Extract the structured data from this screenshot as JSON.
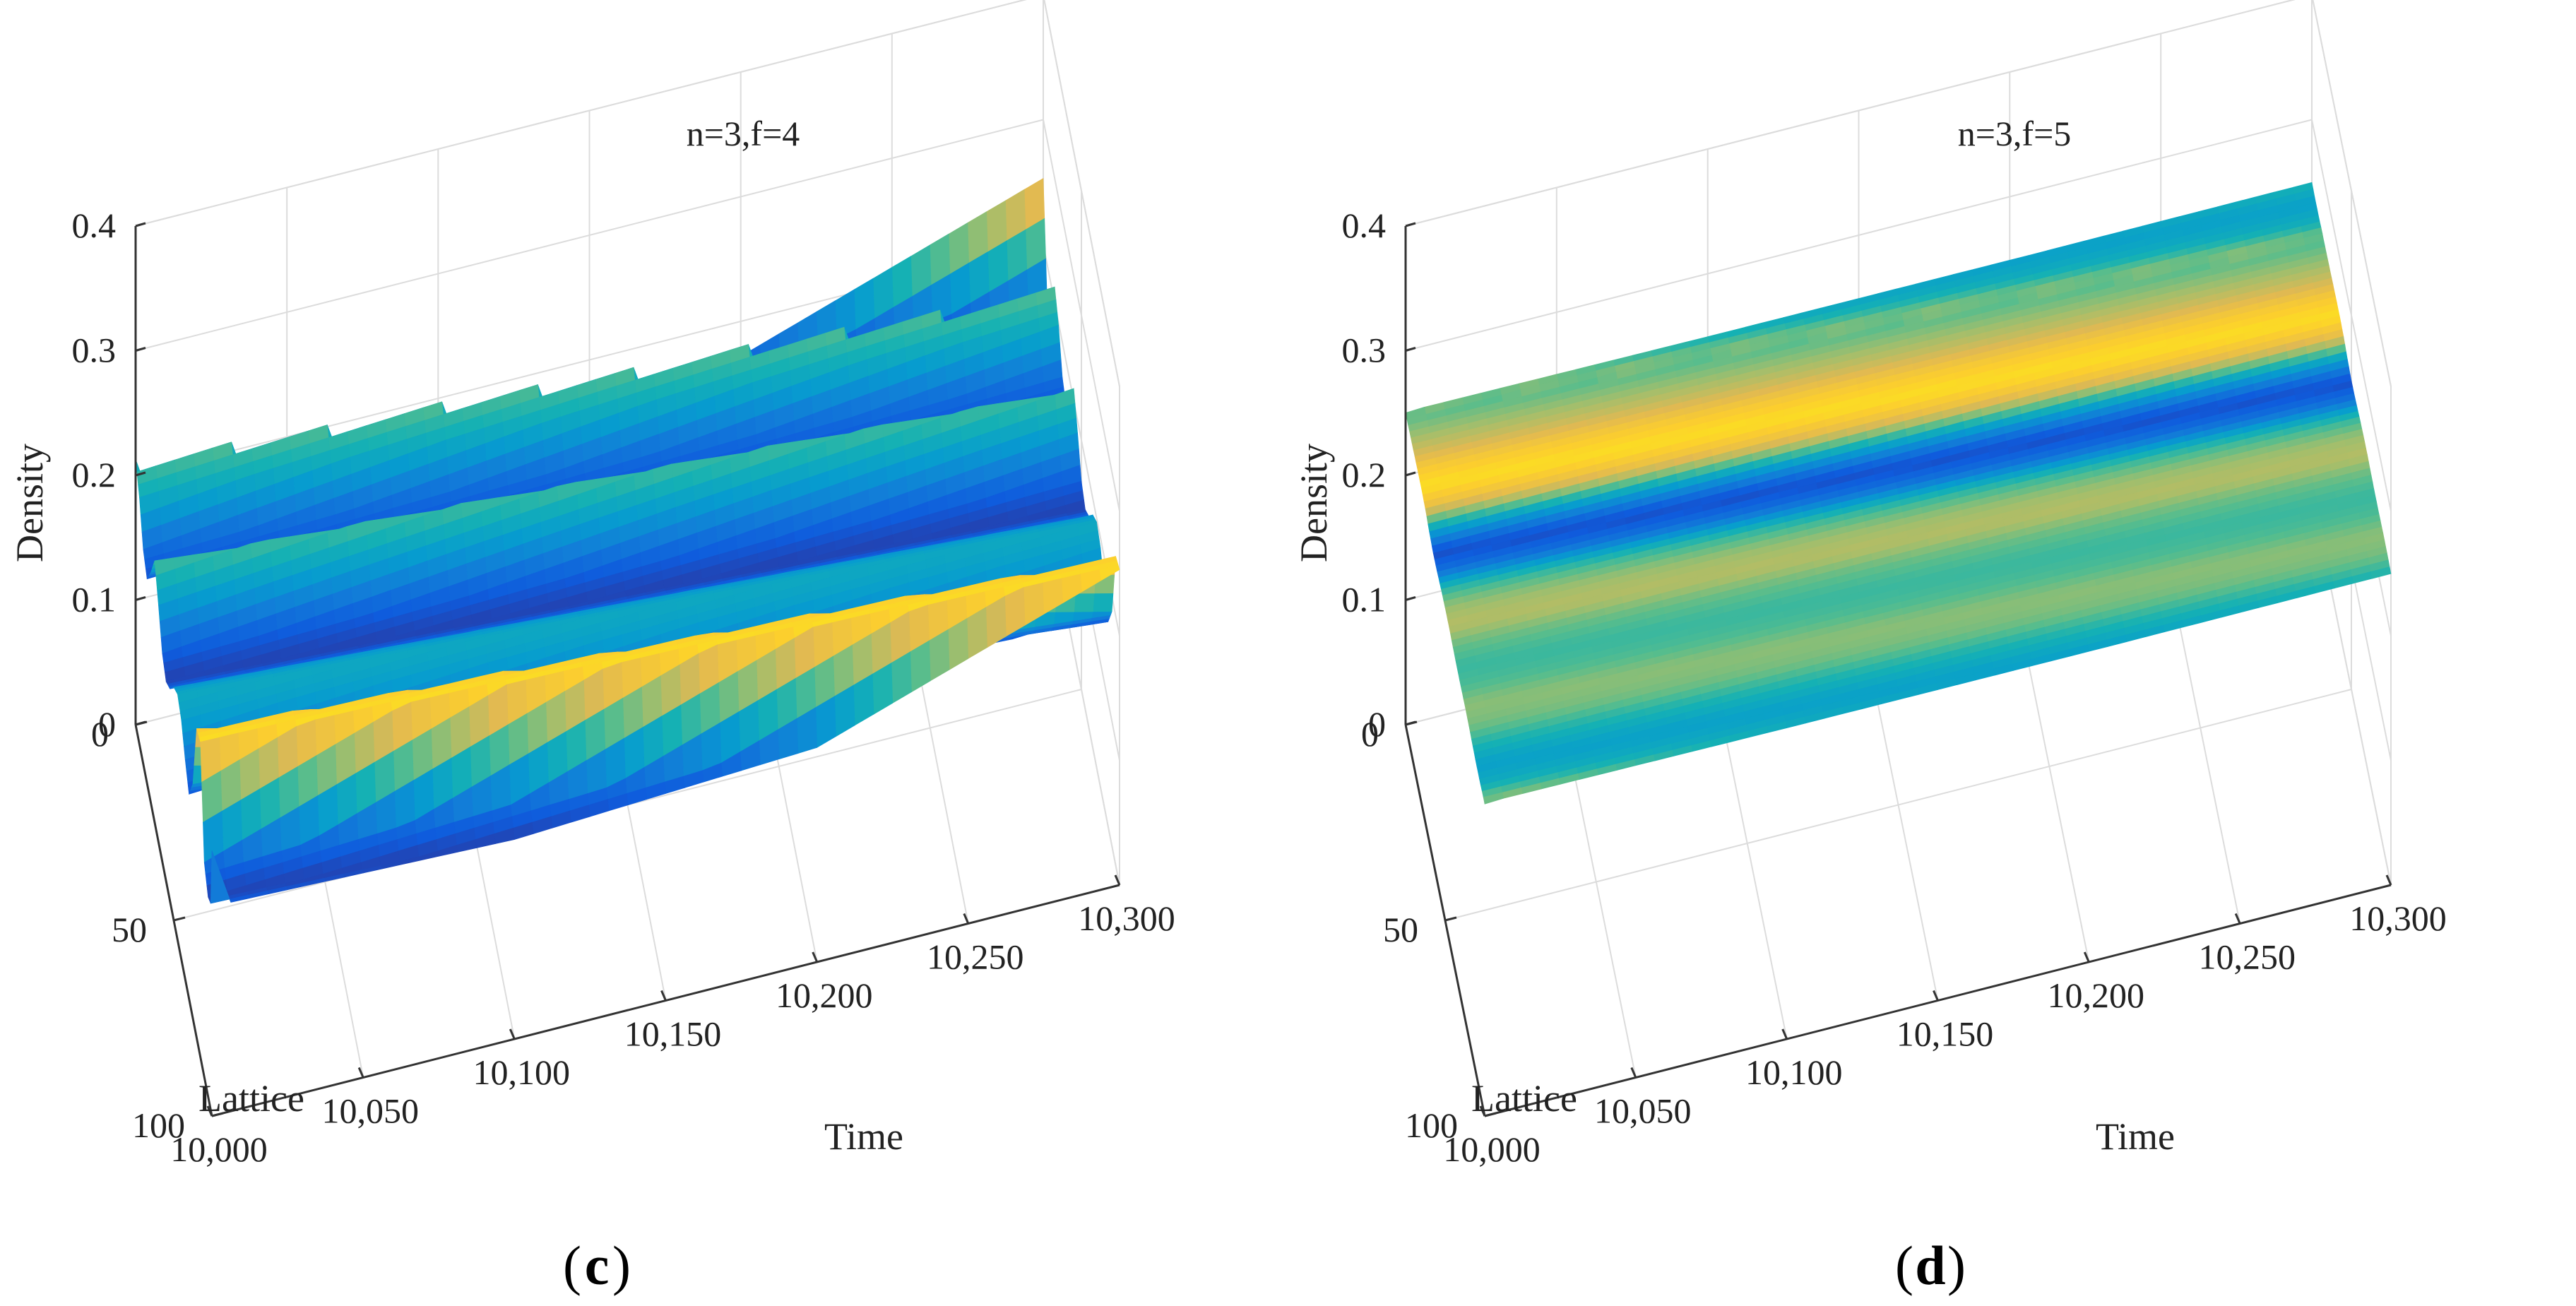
{
  "chart_data": [
    {
      "type": "surface",
      "panel_label": "c",
      "annotation": "n=3,f=4",
      "xlabel": "Time",
      "ylabel": "Lattice",
      "zlabel": "Density",
      "x_ticks": [
        "10,000",
        "10,050",
        "10,100",
        "10,150",
        "10,200",
        "10,250",
        "10,300"
      ],
      "x_tick_values": [
        10000,
        10050,
        10100,
        10150,
        10200,
        10250,
        10300
      ],
      "y_ticks": [
        "0",
        "50",
        "100"
      ],
      "y_tick_values": [
        0,
        50,
        100
      ],
      "z_ticks": [
        "0",
        "0.1",
        "0.2",
        "0.3",
        "0.4"
      ],
      "z_tick_values": [
        0,
        0.1,
        0.2,
        0.3,
        0.4
      ],
      "xlim": [
        10000,
        10300
      ],
      "ylim": [
        0,
        100
      ],
      "zlim": [
        0,
        0.4
      ],
      "density_range": [
        0.155,
        0.26
      ],
      "colormap": "parula",
      "grid": true,
      "surface": {
        "lattice": [
          0,
          5,
          10,
          15,
          20,
          25,
          30,
          35,
          40,
          45,
          50,
          55,
          60,
          65,
          70,
          75,
          80,
          85,
          90,
          95,
          100
        ],
        "density_at_time_10000": [
          0.213,
          0.198,
          0.172,
          0.164,
          0.185,
          0.21,
          0.19,
          0.167,
          0.16,
          0.17,
          0.187,
          0.197,
          0.192,
          0.176,
          0.164,
          0.188,
          0.248,
          0.253,
          0.172,
          0.16,
          0.168
        ],
        "wave_drift_sites_per_time": 0.05
      }
    },
    {
      "type": "surface",
      "panel_label": "d",
      "annotation": "n=3,f=5",
      "xlabel": "Time",
      "ylabel": "Lattice",
      "zlabel": "Density",
      "x_ticks": [
        "10,000",
        "10,050",
        "10,100",
        "10,150",
        "10,200",
        "10,250",
        "10,300"
      ],
      "x_tick_values": [
        10000,
        10050,
        10100,
        10150,
        10200,
        10250,
        10300
      ],
      "y_ticks": [
        "0",
        "50",
        "100"
      ],
      "y_tick_values": [
        0,
        50,
        100
      ],
      "z_ticks": [
        "0",
        "0.1",
        "0.2",
        "0.3",
        "0.4"
      ],
      "z_tick_values": [
        0,
        0.1,
        0.2,
        0.3,
        0.4
      ],
      "xlim": [
        10000,
        10300
      ],
      "ylim": [
        0,
        100
      ],
      "zlim": [
        0,
        0.4
      ],
      "density_range": [
        0.247,
        0.253
      ],
      "colormap": "parula",
      "grid": true,
      "surface": {
        "lattice": [
          0,
          5,
          10,
          15,
          20,
          25,
          30,
          35,
          40,
          45,
          50,
          55,
          60,
          65,
          70,
          75,
          80,
          85,
          90,
          95,
          100
        ],
        "density_at_time_10000": [
          0.2502,
          0.2508,
          0.2514,
          0.2522,
          0.2526,
          0.2518,
          0.249,
          0.2474,
          0.2481,
          0.2499,
          0.2509,
          0.2512,
          0.2504,
          0.25,
          0.2502,
          0.2508,
          0.2506,
          0.2497,
          0.2491,
          0.2495,
          0.251
        ],
        "wave_drift_sites_per_time": 0.05
      }
    }
  ]
}
